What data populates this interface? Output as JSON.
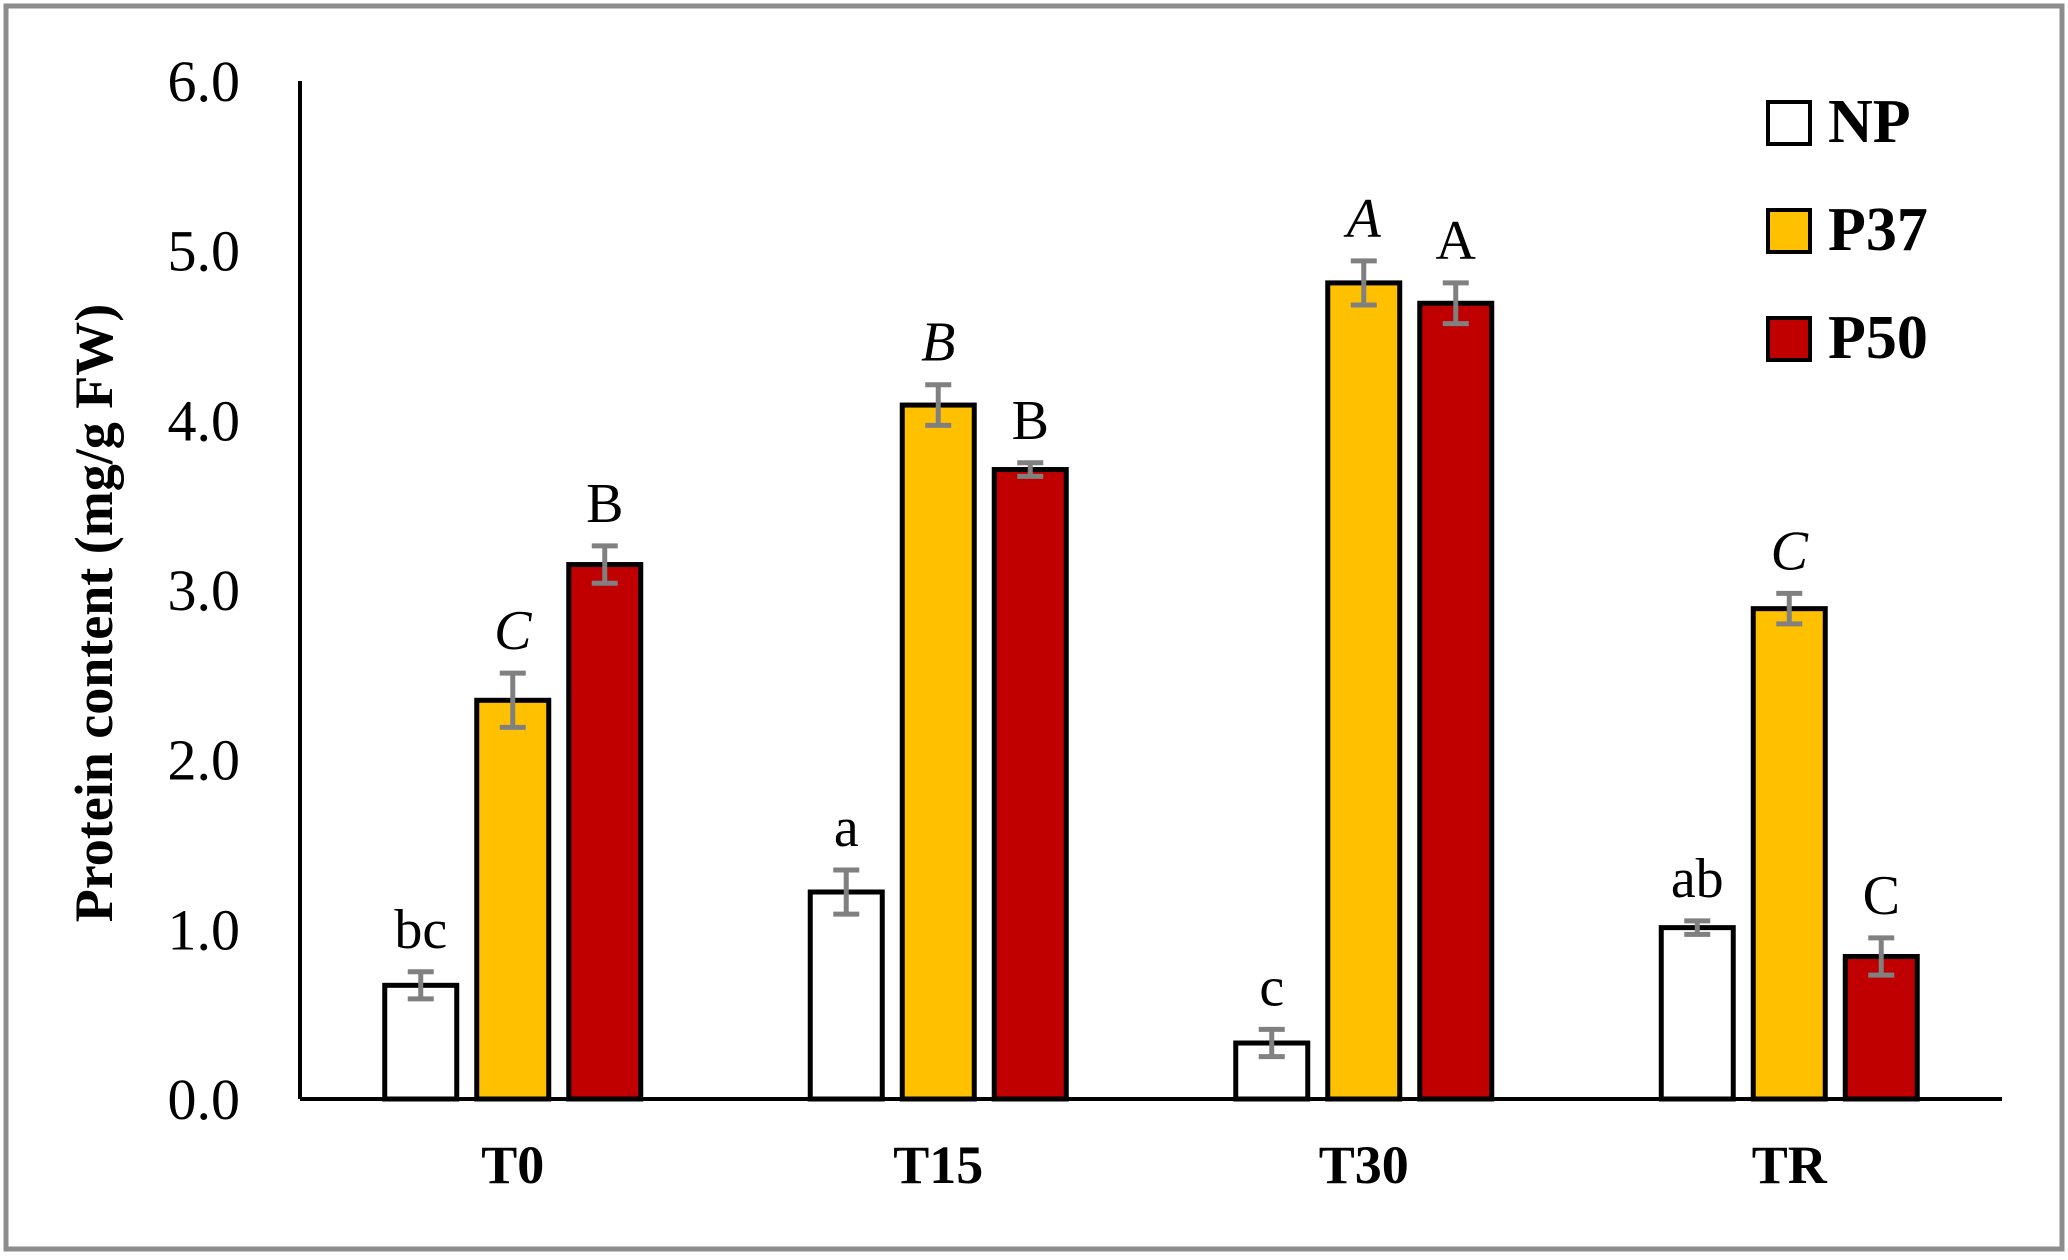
{
  "chart_data": {
    "type": "bar",
    "title": "",
    "xlabel": "",
    "ylabel": "Protein content (mg/g FW)",
    "ylim": [
      0,
      6.0
    ],
    "yticks": [
      "0.0",
      "1.0",
      "2.0",
      "3.0",
      "4.0",
      "5.0",
      "6.0"
    ],
    "grid": false,
    "legend_position": "top-right",
    "categories": [
      "T0",
      "T15",
      "T30",
      "TR"
    ],
    "series": [
      {
        "name": "NP",
        "color": "#ffffff",
        "values": [
          0.67,
          1.22,
          0.33,
          1.01
        ],
        "errors": [
          0.08,
          0.13,
          0.08,
          0.04
        ],
        "labels": [
          "bc",
          "a",
          "c",
          "ab"
        ],
        "labels_italic": [
          false,
          false,
          false,
          false
        ]
      },
      {
        "name": "P37",
        "color": "#ffc000",
        "values": [
          2.35,
          4.09,
          4.81,
          2.89
        ],
        "errors": [
          0.16,
          0.12,
          0.13,
          0.09
        ],
        "labels": [
          "C",
          "B",
          "A",
          "C"
        ],
        "labels_italic": [
          true,
          true,
          true,
          true
        ]
      },
      {
        "name": "P50",
        "color": "#c00000",
        "values": [
          3.15,
          3.71,
          4.69,
          0.84
        ],
        "errors": [
          0.11,
          0.04,
          0.12,
          0.11
        ],
        "labels": [
          "B",
          "B",
          "A",
          "C"
        ],
        "labels_italic": [
          false,
          false,
          false,
          false
        ]
      }
    ]
  }
}
